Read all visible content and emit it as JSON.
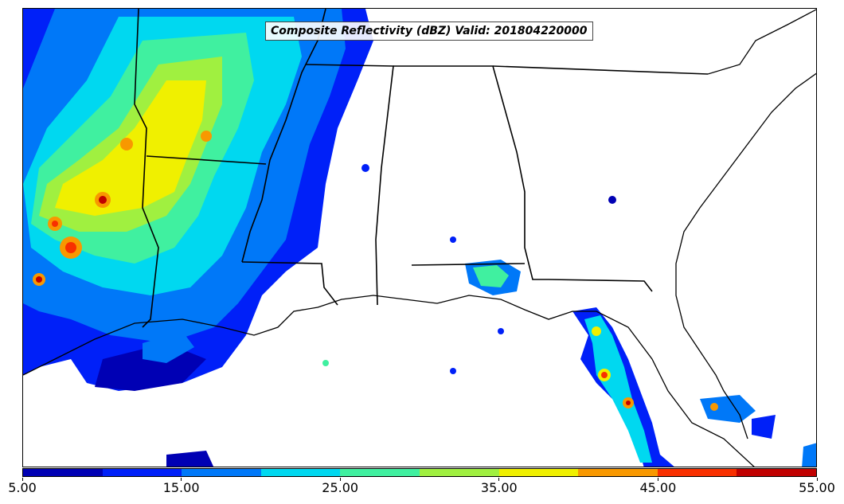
{
  "title": "Composite Reflectivity (dBZ) Valid: 201804220000",
  "colorbar": {
    "colors": [
      "#0000b4",
      "#0020f8",
      "#0078f8",
      "#00d8f0",
      "#40f0a0",
      "#a0f040",
      "#f0f000",
      "#f89800",
      "#f83000",
      "#c00000"
    ],
    "tick_labels": [
      "5.00",
      "15.00",
      "25.00",
      "35.00",
      "45.00",
      "55.00"
    ]
  },
  "map": {
    "region": "Southeastern United States",
    "field": "composite reflectivity",
    "units": "dBZ"
  }
}
